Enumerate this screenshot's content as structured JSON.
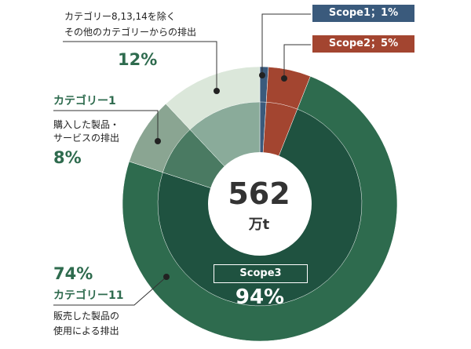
{
  "chart_data": {
    "type": "pie",
    "total": {
      "value": "562",
      "unit": "万t"
    },
    "outer": [
      {
        "name": "Scope1",
        "label": "Scope1；1%",
        "value": 1,
        "color": "#3a5a7c"
      },
      {
        "name": "Scope2",
        "label": "Scope2；5%",
        "value": 5,
        "color": "#a34530"
      },
      {
        "name": "Scope3",
        "label": "Scope3",
        "value": 94,
        "pct_label": "94%",
        "color": "#2e6b4e"
      }
    ],
    "inner": [
      {
        "name": "scope1",
        "value": 1,
        "color": "#3a5a7c"
      },
      {
        "name": "scope2",
        "value": 5,
        "color": "#a34530"
      },
      {
        "name": "cat11",
        "value": 74,
        "color": "#1f5240"
      },
      {
        "name": "cat1",
        "value": 8,
        "color": "#4a7a62"
      },
      {
        "name": "other",
        "value": 12,
        "color": "#8aab9a"
      }
    ],
    "outer_scope3_split": [
      {
        "name": "cat11",
        "value": 74,
        "color": "#2e6b4e"
      },
      {
        "name": "cat1",
        "value": 8,
        "color": "#8aa592"
      },
      {
        "name": "other",
        "value": 12,
        "color": "#dbe7da"
      }
    ],
    "annotations": [
      {
        "id": "other",
        "lines": [
          "カテゴリー8,13,14を除く",
          "その他のカテゴリーからの排出"
        ],
        "pct": "12%"
      },
      {
        "id": "cat1",
        "category": "カテゴリー1",
        "lines": [
          "購入した製品・",
          "サービスの排出"
        ],
        "pct": "8%"
      },
      {
        "id": "cat11",
        "category": "カテゴリー11",
        "lines": [
          "販売した製品の",
          "使用による排出"
        ],
        "pct": "74%"
      }
    ]
  }
}
